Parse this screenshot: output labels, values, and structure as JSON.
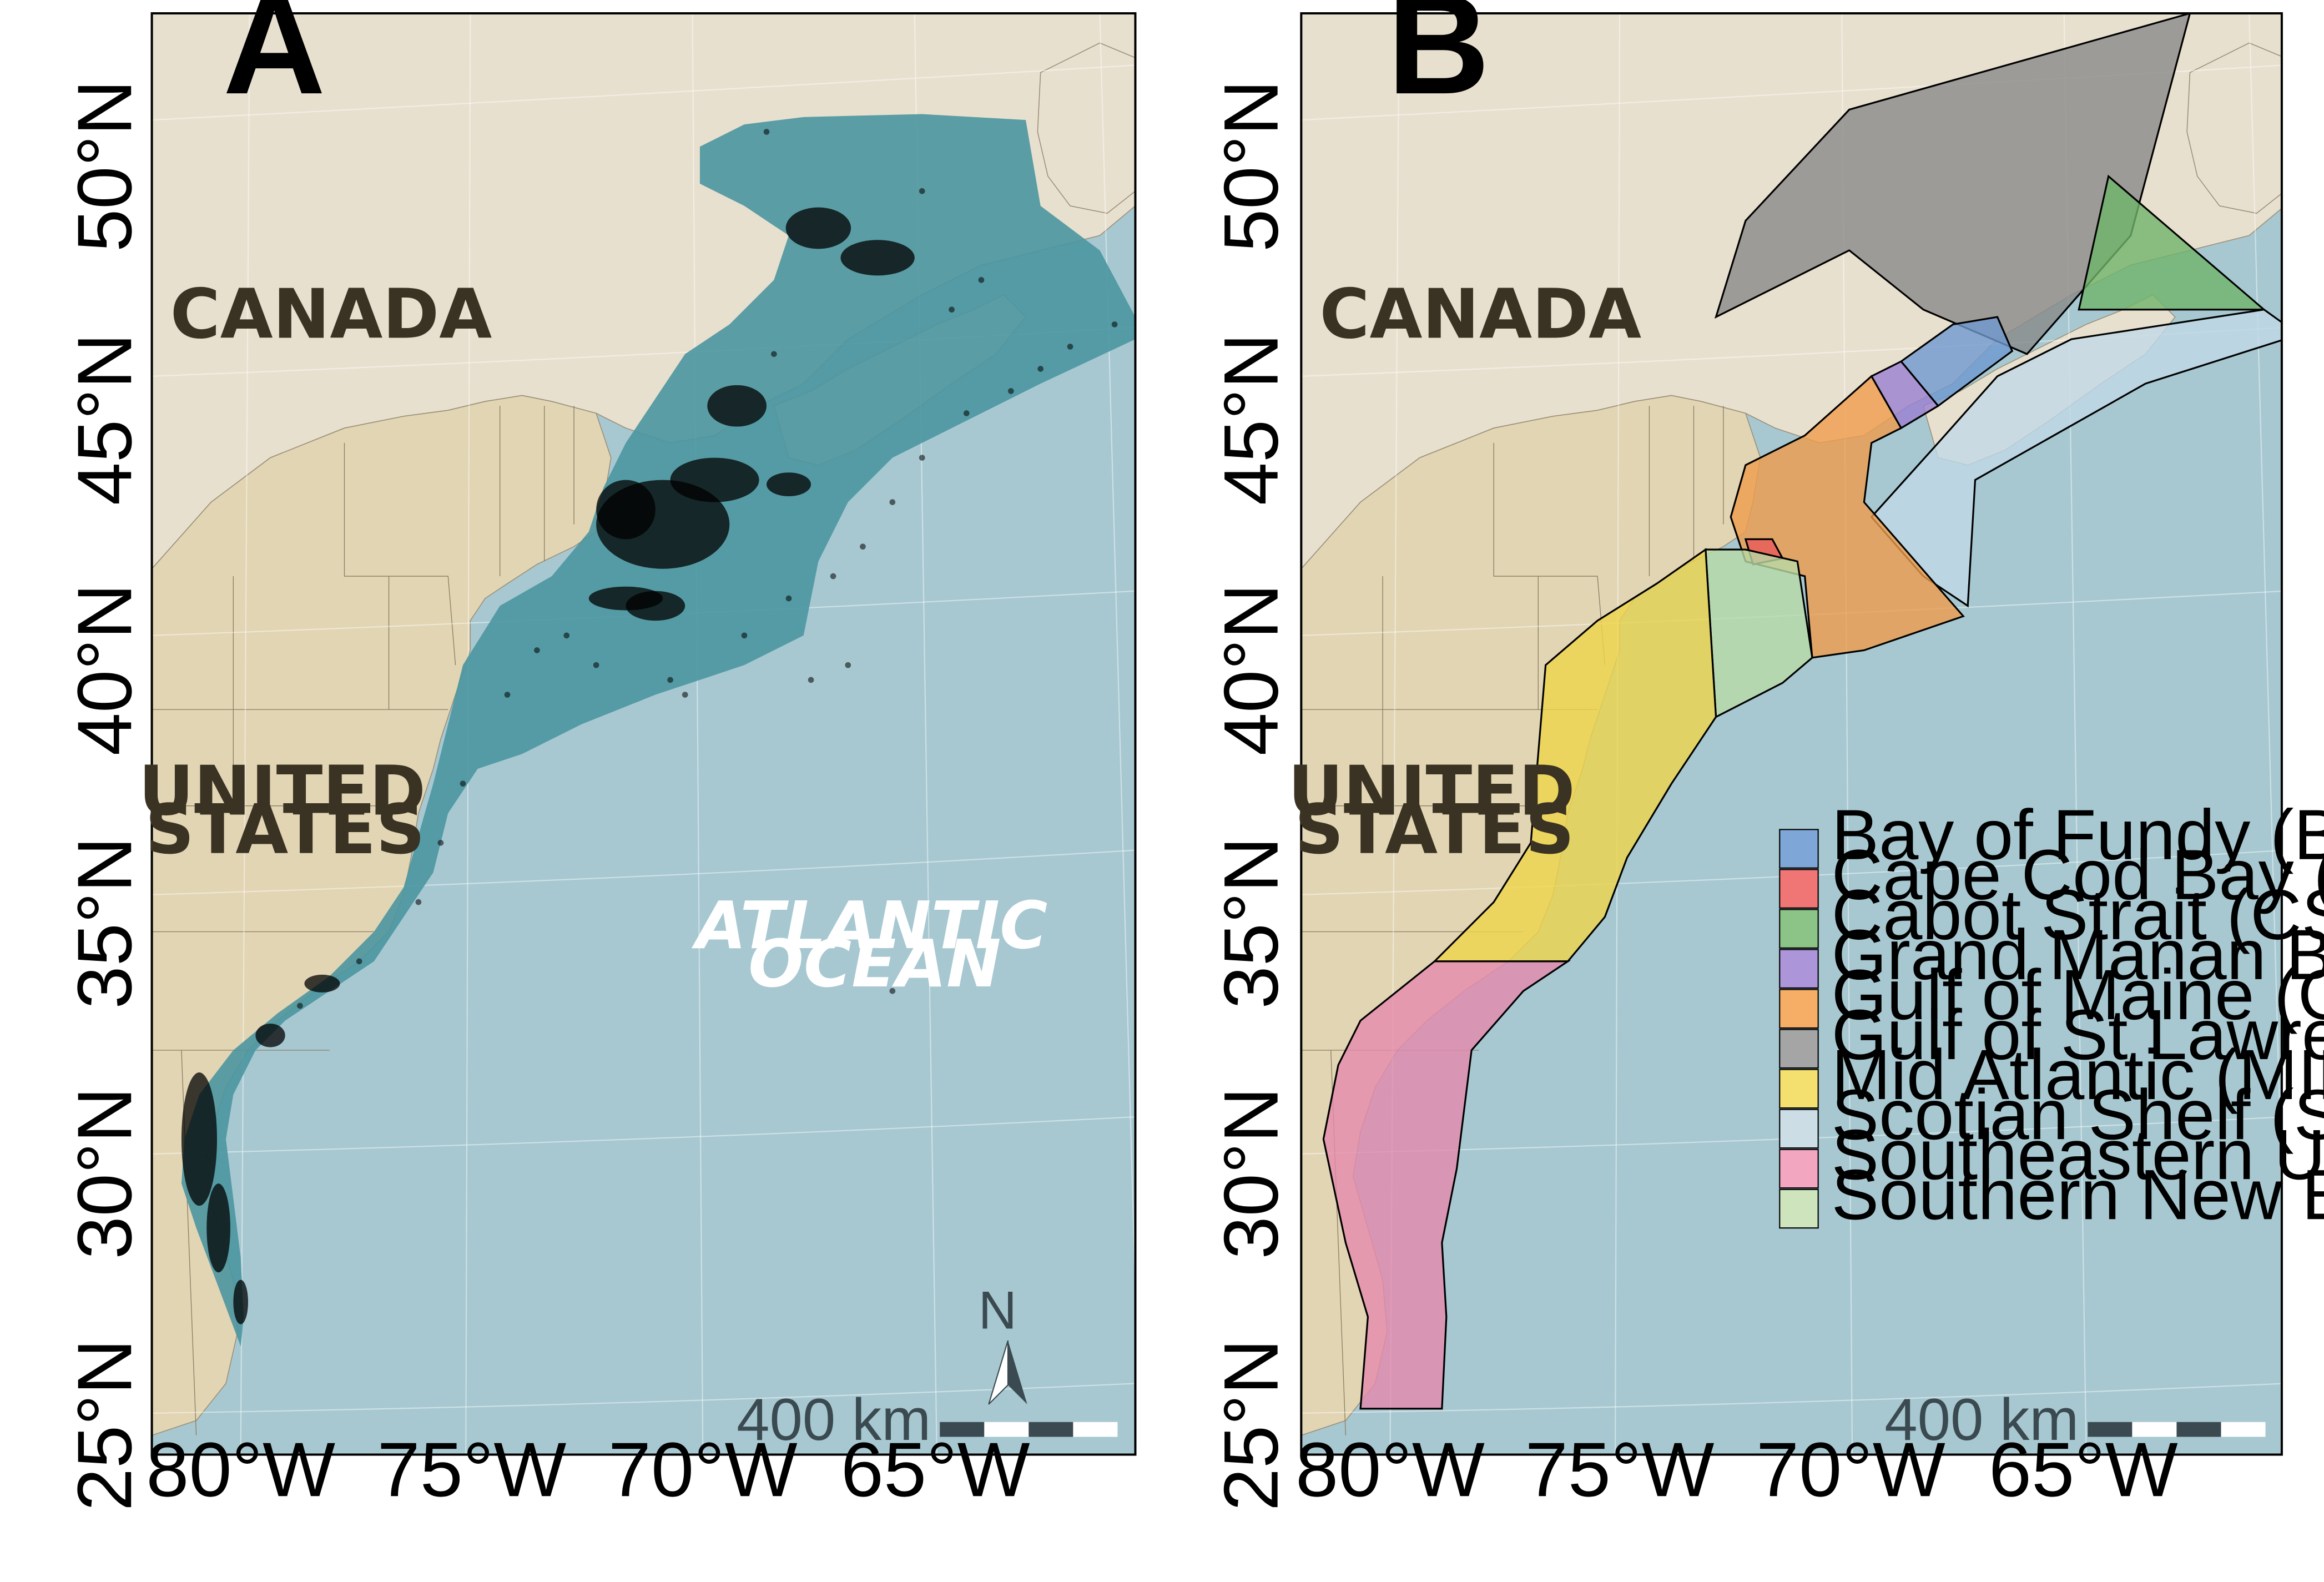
{
  "panels": [
    {
      "letter": "A",
      "labels": {
        "canada": "CANADA",
        "us_line1": "UNITED",
        "us_line2": "STATES",
        "ocean_line1": "ATLANTIC",
        "ocean_line2": "OCEAN"
      },
      "scale": "400 km",
      "north": "N"
    },
    {
      "letter": "B",
      "labels": {
        "canada": "CANADA",
        "us_line1": "UNITED",
        "us_line2": "STATES"
      },
      "scale": "400 km"
    }
  ],
  "axes": {
    "lat_ticks": [
      "50°N",
      "45°N",
      "40°N",
      "35°N",
      "30°N",
      "25°N"
    ],
    "lon_ticks": [
      "80°W",
      "75°W",
      "70°W",
      "65°W"
    ]
  },
  "legend": [
    {
      "label": "Bay of Fundy (BOF)",
      "color": "#7ea6d6"
    },
    {
      "label": "Cape Cod Bay (CCB)",
      "color": "#f07676"
    },
    {
      "label": "Cabot Strait (CST)",
      "color": "#8cc487"
    },
    {
      "label": "Grand Manan Basin (GMAN)",
      "color": "#ad95d9"
    },
    {
      "label": "Gulf of Maine (GOM)",
      "color": "#f6ad66"
    },
    {
      "label": "Gulf of St Lawrence (GSL)",
      "color": "#a5a5a5"
    },
    {
      "label": "Mid Atlantic (MIDA)",
      "color": "#f4e06e"
    },
    {
      "label": "Scotian Shelf (SCOS)",
      "color": "#cddde6"
    },
    {
      "label": "Southeastern U.S. (SEUS)",
      "color": "#f2a6bf"
    },
    {
      "label": "Southern New England (SNE)",
      "color": "#cde4bd"
    }
  ],
  "colors": {
    "ocean": "#a7c8d1",
    "land_canada": "#e8e0cf",
    "land_us": "#e2d5b4",
    "survey": "#4b96a0",
    "frame": "#000000"
  }
}
